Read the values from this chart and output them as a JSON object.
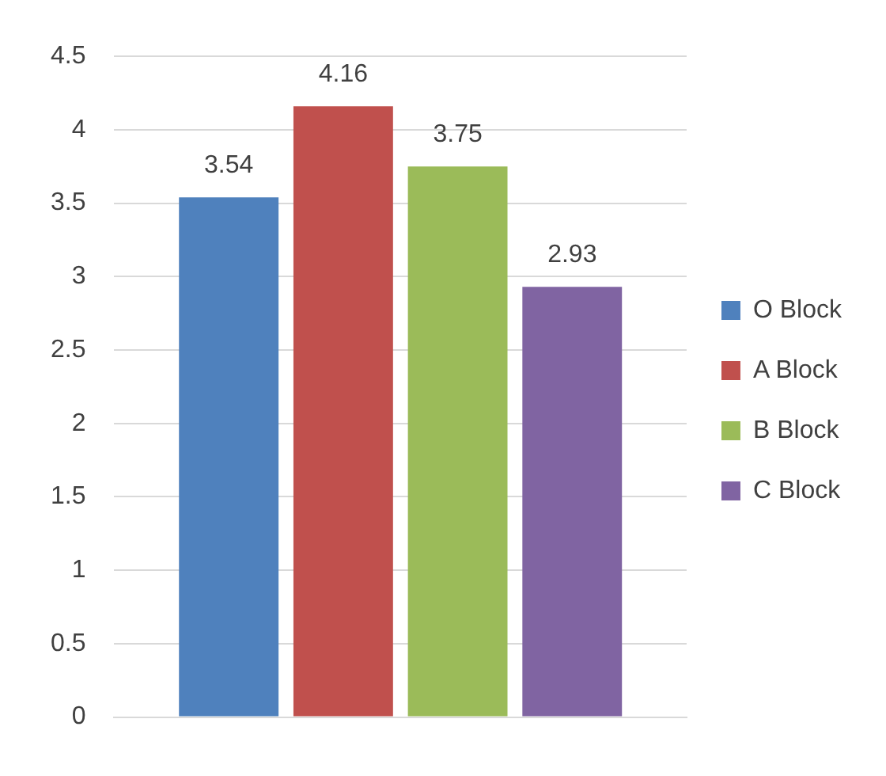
{
  "chart_data": {
    "type": "bar",
    "categories": [
      null
    ],
    "series": [
      {
        "name": "O Block",
        "color": "#4f81bd",
        "values": [
          3.54
        ]
      },
      {
        "name": "A Block",
        "color": "#c0504d",
        "values": [
          4.16
        ]
      },
      {
        "name": "B Block",
        "color": "#9bbb59",
        "values": [
          3.75
        ]
      },
      {
        "name": "C Block",
        "color": "#8064a2",
        "values": [
          2.93
        ]
      }
    ],
    "ylim": [
      0,
      4.5
    ],
    "yticks": [
      0,
      0.5,
      1,
      1.5,
      2,
      2.5,
      3,
      3.5,
      4,
      4.5
    ],
    "grid": "y",
    "legend": "right",
    "data_labels": true
  }
}
